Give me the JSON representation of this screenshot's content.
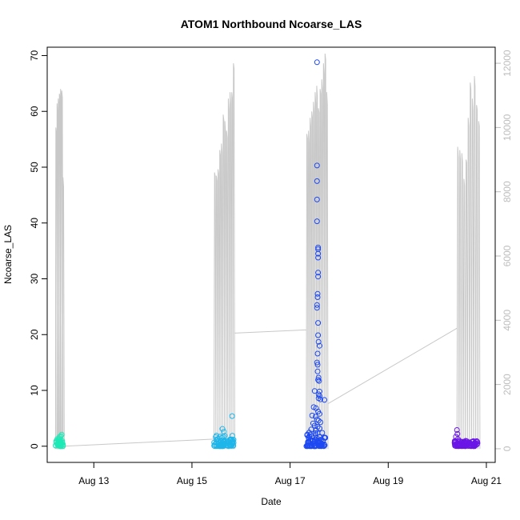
{
  "chart_data": {
    "type": "scatter",
    "title": "ATOM1 Northbound Ncoarse_LAS",
    "xlabel": "Date",
    "ylabel": "Ncoarse_LAS",
    "x_ticks": [
      "Aug 13",
      "Aug 15",
      "Aug 17",
      "Aug 19",
      "Aug 21"
    ],
    "y_ticks": [
      0,
      10,
      20,
      30,
      40,
      50,
      60,
      70
    ],
    "y2_ticks": [
      0,
      2000,
      4000,
      6000,
      8000,
      10000,
      12000
    ],
    "xlim_days": [
      12.05,
      21.18
    ],
    "ylim": [
      -2.9,
      71.5
    ],
    "y2lim": [
      -425,
      12500
    ],
    "grid": false,
    "colors": {
      "line": "#c8c8c8",
      "right_axis": "#bdbdbd",
      "series": [
        "#1de9b6",
        "#1fb6ea",
        "#1e49f2",
        "#6b15e8"
      ]
    },
    "series": [
      {
        "axis": "left",
        "color": "#1de9b6",
        "cluster": {
          "x_start": 12.22,
          "x_end": 12.38,
          "y_max": 2.1
        },
        "points": [
          {
            "x": 12.33,
            "y": 1.8
          },
          {
            "x": 12.3,
            "y": 1.2
          }
        ]
      },
      {
        "axis": "left",
        "color": "#1fb6ea",
        "cluster": {
          "x_start": 15.45,
          "x_end": 15.85,
          "y_max": 2.0
        },
        "points": [
          {
            "x": 15.82,
            "y": 5.4
          },
          {
            "x": 15.62,
            "y": 3.1
          },
          {
            "x": 15.65,
            "y": 2.6
          },
          {
            "x": 15.5,
            "y": 1.9
          }
        ]
      },
      {
        "axis": "left",
        "color": "#1e49f2",
        "cluster": {
          "x_start": 17.33,
          "x_end": 17.72,
          "y_max": 2.5
        },
        "points": [
          {
            "x": 17.55,
            "y": 68.8
          },
          {
            "x": 17.55,
            "y": 50.3
          },
          {
            "x": 17.55,
            "y": 47.5
          },
          {
            "x": 17.55,
            "y": 44.2
          },
          {
            "x": 17.55,
            "y": 40.3
          },
          {
            "x": 17.57,
            "y": 35.6
          },
          {
            "x": 17.57,
            "y": 35.3
          },
          {
            "x": 17.57,
            "y": 34.5
          },
          {
            "x": 17.57,
            "y": 33.8
          },
          {
            "x": 17.57,
            "y": 31.1
          },
          {
            "x": 17.57,
            "y": 30.4
          },
          {
            "x": 17.56,
            "y": 27.3
          },
          {
            "x": 17.56,
            "y": 26.7
          },
          {
            "x": 17.55,
            "y": 25.3
          },
          {
            "x": 17.55,
            "y": 24.8
          },
          {
            "x": 17.57,
            "y": 22.1
          },
          {
            "x": 17.57,
            "y": 19.9
          },
          {
            "x": 17.58,
            "y": 18.7
          },
          {
            "x": 17.6,
            "y": 18.0
          },
          {
            "x": 17.56,
            "y": 16.6
          },
          {
            "x": 17.55,
            "y": 15.0
          },
          {
            "x": 17.56,
            "y": 14.6
          },
          {
            "x": 17.56,
            "y": 13.4
          },
          {
            "x": 17.58,
            "y": 12.3
          },
          {
            "x": 17.57,
            "y": 11.9
          },
          {
            "x": 17.59,
            "y": 11.7
          },
          {
            "x": 17.6,
            "y": 9.8
          },
          {
            "x": 17.58,
            "y": 9.3
          },
          {
            "x": 17.6,
            "y": 9.0
          },
          {
            "x": 17.58,
            "y": 8.6
          },
          {
            "x": 17.62,
            "y": 8.4
          },
          {
            "x": 17.7,
            "y": 8.3
          },
          {
            "x": 17.5,
            "y": 9.9
          },
          {
            "x": 17.48,
            "y": 7.0
          },
          {
            "x": 17.53,
            "y": 6.8
          },
          {
            "x": 17.57,
            "y": 6.2
          },
          {
            "x": 17.6,
            "y": 5.8
          },
          {
            "x": 17.45,
            "y": 5.5
          },
          {
            "x": 17.52,
            "y": 5.3
          },
          {
            "x": 17.55,
            "y": 4.8
          },
          {
            "x": 17.58,
            "y": 4.6
          },
          {
            "x": 17.62,
            "y": 4.3
          },
          {
            "x": 17.47,
            "y": 4.1
          },
          {
            "x": 17.5,
            "y": 3.7
          },
          {
            "x": 17.56,
            "y": 3.5
          },
          {
            "x": 17.6,
            "y": 3.2
          },
          {
            "x": 17.43,
            "y": 3.0
          },
          {
            "x": 17.53,
            "y": 2.8
          }
        ]
      },
      {
        "axis": "left",
        "color": "#6b15e8",
        "cluster": {
          "x_start": 20.35,
          "x_end": 20.82,
          "y_max": 1.0
        },
        "points": [
          {
            "x": 20.4,
            "y": 2.9
          },
          {
            "x": 20.41,
            "y": 2.2
          },
          {
            "x": 20.38,
            "y": 1.7
          },
          {
            "x": 20.42,
            "y": 1.3
          },
          {
            "x": 20.6,
            "y": 0.9
          },
          {
            "x": 20.7,
            "y": 0.8
          }
        ]
      },
      {
        "axis": "right",
        "type": "line",
        "color": "#c8c8c8",
        "bursts": [
          {
            "x_start": 12.22,
            "x_end": 12.39,
            "peaks": [
              10000,
              10750,
              10900,
              11050,
              11200,
              11150,
              8450
            ]
          },
          {
            "x_start": 15.45,
            "x_end": 15.87,
            "peaks": [
              8600,
              8500,
              8700,
              9300,
              9500,
              10400,
              10200,
              9900,
              10900,
              11100,
              11100,
              12000
            ]
          },
          {
            "x_start": 17.33,
            "x_end": 17.77,
            "peaks": [
              9800,
              9900,
              10300,
              10500,
              10800,
              11100,
              11300,
              10600,
              11200,
              11500,
              12000,
              12300,
              11100
            ]
          },
          {
            "x_start": 20.4,
            "x_end": 20.87,
            "peaks": [
              9400,
              9300,
              9200,
              8400,
              9000,
              10300,
              11400,
              10900,
              11600,
              10700,
              10200
            ]
          }
        ],
        "bridges": [
          {
            "x": [
              12.39,
              15.45
            ],
            "y": [
              80,
              300
            ]
          },
          {
            "x": [
              15.87,
              17.33
            ],
            "y": [
              3600,
              3700
            ]
          },
          {
            "x": [
              17.77,
              20.4
            ],
            "y": [
              1400,
              3750
            ]
          }
        ]
      }
    ]
  }
}
